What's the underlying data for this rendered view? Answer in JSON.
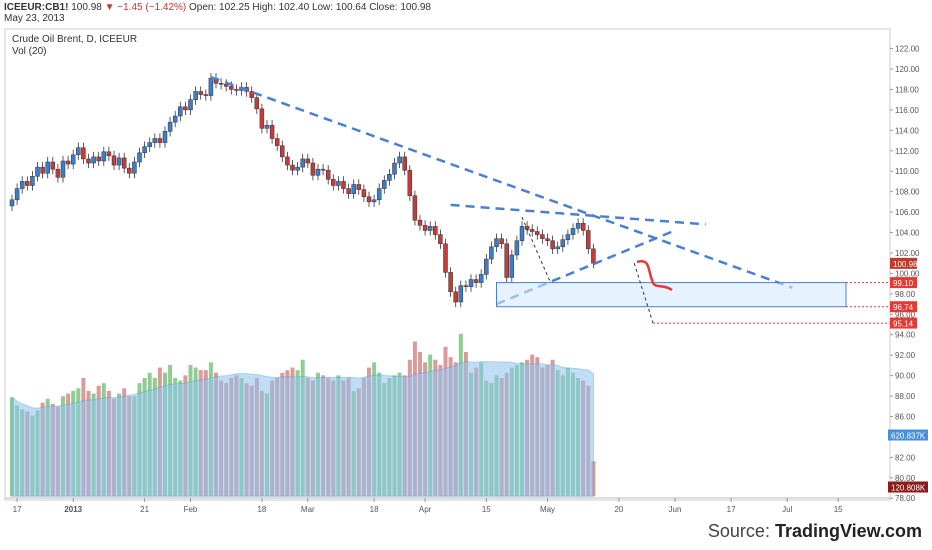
{
  "header": {
    "symbol": "ICEEUR:CB1!",
    "last": "100.98",
    "change": "▼ −1.45 (−1.42%)",
    "open_label": "Open:",
    "open": "102.25",
    "high_label": "High:",
    "high": "102.40",
    "low_label": "Low:",
    "low": "100.64",
    "close_label": "Close:",
    "close": "100.98",
    "date": "May 23, 2013"
  },
  "source": {
    "prefix": "Source: ",
    "brand": "TradingView.com"
  },
  "chart_data": {
    "type": "candlestick",
    "title": "Crude Oil Brent, D, ICEEUR",
    "volume_label": "Vol (20)",
    "ylim": [
      78,
      123
    ],
    "yticks": [
      "122.00",
      "120.00",
      "118.00",
      "116.00",
      "114.00",
      "112.00",
      "110.00",
      "108.00",
      "106.00",
      "104.00",
      "102.00",
      "100.00",
      "98.00",
      "96.00",
      "94.00",
      "92.00",
      "90.00",
      "88.00",
      "86.00",
      "84.00",
      "82.00",
      "80.00",
      "78.00"
    ],
    "x_ticks": [
      {
        "label": "17",
        "index": 1
      },
      {
        "label": "2013",
        "index": 12
      },
      {
        "label": "21",
        "index": 26
      },
      {
        "label": "Feb",
        "index": 35
      },
      {
        "label": "18",
        "index": 49
      },
      {
        "label": "Mar",
        "index": 58
      },
      {
        "label": "18",
        "index": 71
      },
      {
        "label": "Apr",
        "index": 81
      },
      {
        "label": "15",
        "index": 93
      },
      {
        "label": "May",
        "index": 105
      },
      {
        "label": "20",
        "index": 119
      },
      {
        "label": "Jun",
        "index": 130
      },
      {
        "label": "17",
        "index": 141
      },
      {
        "label": "Jul",
        "index": 152
      },
      {
        "label": "15",
        "index": 162
      }
    ],
    "price_labels": [
      {
        "value": 100.98,
        "text": "100.98",
        "color": "#c0392b"
      },
      {
        "value": 99.1,
        "text": "99.10",
        "color": "#e53935"
      },
      {
        "value": 96.74,
        "text": "96.74",
        "color": "#e53935"
      },
      {
        "value": 95.14,
        "text": "95.14",
        "color": "#e53935"
      }
    ],
    "volume_labels": [
      {
        "text": "620.837K",
        "color": "#4a90d9"
      },
      {
        "text": "120.808K",
        "color": "#8b1a1a"
      }
    ],
    "closes": [
      107.2,
      108.3,
      109.0,
      108.6,
      109.5,
      110.4,
      109.8,
      110.9,
      110.2,
      109.4,
      111.0,
      110.7,
      111.6,
      112.3,
      111.2,
      110.8,
      111.4,
      111.0,
      111.9,
      111.5,
      110.6,
      111.3,
      110.3,
      109.8,
      110.9,
      111.8,
      112.4,
      112.8,
      113.2,
      112.8,
      113.9,
      114.8,
      115.4,
      116.3,
      116.0,
      117.0,
      117.8,
      117.5,
      117.4,
      119.1,
      118.6,
      118.5,
      118.3,
      118.0,
      117.9,
      118.2,
      117.8,
      117.2,
      116.1,
      114.2,
      114.5,
      113.2,
      112.5,
      111.4,
      110.6,
      110.1,
      110.4,
      111.2,
      110.8,
      109.6,
      110.2,
      110.1,
      109.2,
      108.6,
      109.0,
      108.3,
      107.8,
      108.7,
      108.2,
      107.5,
      107.0,
      107.2,
      108.3,
      109.1,
      109.7,
      110.8,
      111.4,
      110.1,
      107.6,
      105.2,
      104.7,
      104.2,
      104.6,
      103.8,
      102.9,
      100.1,
      98.2,
      97.2,
      98.8,
      98.7,
      99.4,
      99.1,
      99.9,
      101.4,
      102.6,
      103.4,
      102.9,
      99.6,
      101.8,
      103.2,
      104.6,
      104.3,
      104.1,
      103.8,
      103.4,
      103.2,
      102.4,
      102.6,
      103.3,
      103.8,
      104.4,
      104.9,
      104.2,
      102.4,
      101.0
    ],
    "volumes": [
      380,
      350,
      335,
      325,
      310,
      330,
      360,
      375,
      355,
      345,
      385,
      395,
      405,
      415,
      455,
      405,
      395,
      425,
      435,
      405,
      375,
      395,
      415,
      385,
      385,
      435,
      455,
      475,
      455,
      495,
      475,
      505,
      455,
      445,
      465,
      505,
      495,
      485,
      485,
      515,
      475,
      445,
      435,
      455,
      465,
      455,
      435,
      425,
      455,
      405,
      395,
      445,
      455,
      475,
      485,
      495,
      485,
      525,
      455,
      445,
      475,
      465,
      455,
      445,
      465,
      445,
      455,
      405,
      415,
      455,
      495,
      515,
      475,
      435,
      455,
      465,
      475,
      465,
      525,
      595,
      555,
      515,
      545,
      525,
      505,
      575,
      535,
      515,
      625,
      555,
      475,
      495,
      515,
      445,
      435,
      465,
      455,
      475,
      495,
      505,
      515,
      525,
      545,
      535,
      495,
      505,
      525,
      485,
      465,
      495,
      475,
      455,
      445,
      425,
      135
    ]
  }
}
